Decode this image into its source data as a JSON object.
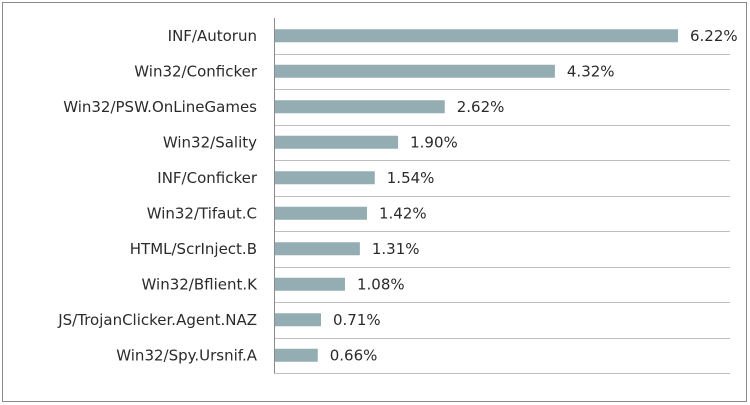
{
  "chart_data": {
    "type": "bar",
    "orientation": "horizontal",
    "title": "",
    "xlabel": "",
    "ylabel": "",
    "categories": [
      "INF/Autorun",
      "Win32/Conficker",
      "Win32/PSW.OnLineGames",
      "Win32/Sality",
      "INF/Conficker",
      "Win32/Tifaut.C",
      "HTML/ScrInject.B",
      "Win32/Bflient.K",
      "JS/TrojanClicker.Agent.NAZ",
      "Win32/Spy.Ursnif.A"
    ],
    "values": [
      6.22,
      4.32,
      2.62,
      1.9,
      1.54,
      1.42,
      1.31,
      1.08,
      0.71,
      0.66
    ],
    "value_labels": [
      "6.22%",
      "4.32%",
      "2.62%",
      "1.90%",
      "1.54%",
      "1.42%",
      "1.31%",
      "1.08%",
      "0.71%",
      "0.66%"
    ],
    "xlim": [
      0,
      6.22
    ],
    "grid": "horizontal-separators",
    "legend": "none",
    "bar_color": "#93adb3"
  }
}
